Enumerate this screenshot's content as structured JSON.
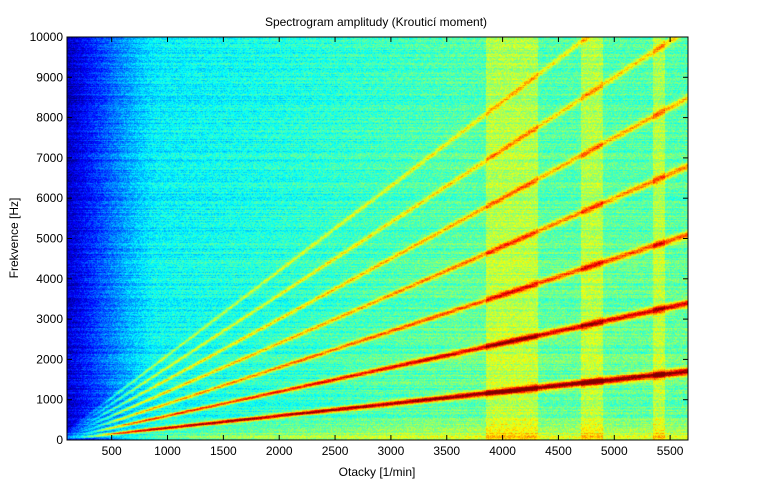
{
  "chart_data": {
    "type": "heatmap",
    "title": "Spectrogram amplitudy (Krouticí moment)",
    "xlabel": "Otacky [1/min]",
    "ylabel": "Frekvence [Hz]",
    "xlim": [
      100,
      5660
    ],
    "ylim": [
      0,
      10000
    ],
    "xticks": [
      500,
      1000,
      1500,
      2000,
      2500,
      3000,
      3500,
      4000,
      4500,
      5000,
      5500
    ],
    "yticks": [
      0,
      1000,
      2000,
      3000,
      4000,
      5000,
      6000,
      7000,
      8000,
      9000,
      10000
    ],
    "colormap": "jet",
    "grid": false,
    "harmonic_orders": [
      {
        "order": 18,
        "relative_amplitude": 1.0
      },
      {
        "order": 36,
        "relative_amplitude": 0.82
      },
      {
        "order": 54,
        "relative_amplitude": 0.62
      },
      {
        "order": 72,
        "relative_amplitude": 0.52
      },
      {
        "order": 90,
        "relative_amplitude": 0.46
      },
      {
        "order": 108,
        "relative_amplitude": 0.38
      },
      {
        "order": 126,
        "relative_amplitude": 0.32
      }
    ],
    "resonance_bands_rpm": [
      [
        3850,
        4000
      ],
      [
        4000,
        4320
      ],
      [
        4700,
        4900
      ],
      [
        5350,
        5450
      ]
    ]
  }
}
